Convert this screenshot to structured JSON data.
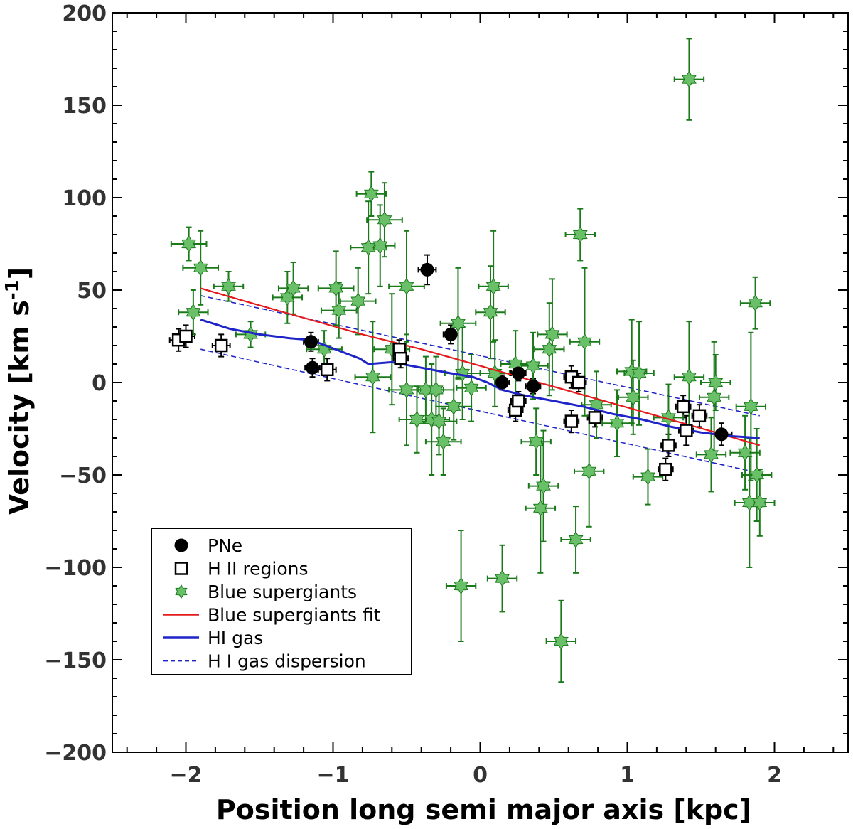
{
  "chart_data": {
    "type": "scatter",
    "title": "",
    "xlabel": "Position long semi major axis [kpc]",
    "ylabel": "Velocity [km s",
    "ylabel_sup": "-1",
    "ylabel_end": "]",
    "xlim": [
      -2.5,
      2.5
    ],
    "ylim": [
      -200,
      200
    ],
    "xticks": [
      -2,
      -1,
      0,
      1,
      2
    ],
    "xtick_labels": [
      "−2",
      "−1",
      "0",
      "1",
      "2"
    ],
    "yticks": [
      -200,
      -150,
      -100,
      -50,
      0,
      50,
      100,
      150,
      200
    ],
    "ytick_labels": [
      "−200",
      "−150",
      "−100",
      "−50",
      "0",
      "50",
      "100",
      "150",
      "200"
    ],
    "colors": {
      "pne": "#000000",
      "hii": "#000000",
      "bsg_fill": "#6abf69",
      "bsg_err": "#1a7a1a",
      "fit": "#e41a1c",
      "hi": "#1f24c8",
      "hi_disp": "#1f24c8"
    },
    "legend": {
      "position": "lower-left",
      "entries": [
        "PNe",
        "H II regions",
        "Blue supergiants",
        "Blue supergiants fit",
        "HI gas",
        "H I gas dispersion"
      ]
    },
    "series": [
      {
        "name": "PNe",
        "marker": "circle",
        "points": [
          {
            "x": -1.15,
            "y": 22,
            "xerr": 0.05,
            "yerr": 5
          },
          {
            "x": -1.14,
            "y": 8,
            "xerr": 0.05,
            "yerr": 5
          },
          {
            "x": -0.36,
            "y": 61,
            "xerr": 0.06,
            "yerr": 8
          },
          {
            "x": -0.2,
            "y": 26,
            "xerr": 0.05,
            "yerr": 5
          },
          {
            "x": 0.15,
            "y": 0,
            "xerr": 0.05,
            "yerr": 4
          },
          {
            "x": 0.26,
            "y": 5,
            "xerr": 0.05,
            "yerr": 4
          },
          {
            "x": 0.36,
            "y": -2,
            "xerr": 0.05,
            "yerr": 4
          },
          {
            "x": 1.64,
            "y": -28,
            "xerr": 0.07,
            "yerr": 6
          }
        ]
      },
      {
        "name": "H II regions",
        "marker": "square",
        "points": [
          {
            "x": -2.05,
            "y": 23,
            "xerr": 0.06,
            "yerr": 6
          },
          {
            "x": -2.0,
            "y": 25,
            "xerr": 0.06,
            "yerr": 6
          },
          {
            "x": -1.76,
            "y": 20,
            "xerr": 0.06,
            "yerr": 6
          },
          {
            "x": -1.04,
            "y": 7,
            "xerr": 0.06,
            "yerr": 6
          },
          {
            "x": -0.55,
            "y": 18,
            "xerr": 0.05,
            "yerr": 5
          },
          {
            "x": -0.54,
            "y": 13,
            "xerr": 0.05,
            "yerr": 5
          },
          {
            "x": 0.24,
            "y": -15,
            "xerr": 0.05,
            "yerr": 6
          },
          {
            "x": 0.26,
            "y": -10,
            "xerr": 0.05,
            "yerr": 5
          },
          {
            "x": 0.62,
            "y": 3,
            "xerr": 0.05,
            "yerr": 6
          },
          {
            "x": 0.67,
            "y": 0,
            "xerr": 0.05,
            "yerr": 5
          },
          {
            "x": 0.62,
            "y": -21,
            "xerr": 0.05,
            "yerr": 6
          },
          {
            "x": 0.78,
            "y": -19,
            "xerr": 0.05,
            "yerr": 5
          },
          {
            "x": 1.26,
            "y": -47,
            "xerr": 0.05,
            "yerr": 6
          },
          {
            "x": 1.28,
            "y": -34,
            "xerr": 0.05,
            "yerr": 6
          },
          {
            "x": 1.38,
            "y": -13,
            "xerr": 0.05,
            "yerr": 6
          },
          {
            "x": 1.4,
            "y": -26,
            "xerr": 0.05,
            "yerr": 8
          },
          {
            "x": 1.49,
            "y": -18,
            "xerr": 0.05,
            "yerr": 6
          }
        ]
      },
      {
        "name": "Blue supergiants",
        "marker": "star",
        "points": [
          {
            "x": -1.98,
            "y": 75,
            "xerr": 0.12,
            "yerr": 9
          },
          {
            "x": -1.9,
            "y": 62,
            "xerr": 0.12,
            "yerr": 20
          },
          {
            "x": -1.95,
            "y": 38,
            "xerr": 0.1,
            "yerr": 12
          },
          {
            "x": -1.71,
            "y": 52,
            "xerr": 0.1,
            "yerr": 8
          },
          {
            "x": -1.56,
            "y": 26,
            "xerr": 0.1,
            "yerr": 7
          },
          {
            "x": -1.31,
            "y": 46,
            "xerr": 0.1,
            "yerr": 14
          },
          {
            "x": -1.27,
            "y": 51,
            "xerr": 0.1,
            "yerr": 14
          },
          {
            "x": -0.98,
            "y": 51,
            "xerr": 0.12,
            "yerr": 20
          },
          {
            "x": -0.96,
            "y": 39,
            "xerr": 0.12,
            "yerr": 15
          },
          {
            "x": -1.06,
            "y": 18,
            "xerr": 0.12,
            "yerr": 10
          },
          {
            "x": -0.83,
            "y": 44,
            "xerr": 0.12,
            "yerr": 18
          },
          {
            "x": -0.74,
            "y": 102,
            "xerr": 0.1,
            "yerr": 12
          },
          {
            "x": -0.76,
            "y": 73,
            "xerr": 0.12,
            "yerr": 25
          },
          {
            "x": -0.68,
            "y": 74,
            "xerr": 0.1,
            "yerr": 22
          },
          {
            "x": -0.65,
            "y": 88,
            "xerr": 0.12,
            "yerr": 20
          },
          {
            "x": -0.73,
            "y": 3,
            "xerr": 0.12,
            "yerr": 30
          },
          {
            "x": -0.6,
            "y": 18,
            "xerr": 0.12,
            "yerr": 30
          },
          {
            "x": -0.5,
            "y": 52,
            "xerr": 0.12,
            "yerr": 30
          },
          {
            "x": -0.5,
            "y": -4,
            "xerr": 0.12,
            "yerr": 30
          },
          {
            "x": -0.43,
            "y": -20,
            "xerr": 0.12,
            "yerr": 18
          },
          {
            "x": -0.37,
            "y": -4,
            "xerr": 0.12,
            "yerr": 18
          },
          {
            "x": -0.33,
            "y": -20,
            "xerr": 0.12,
            "yerr": 30
          },
          {
            "x": -0.3,
            "y": -4,
            "xerr": 0.12,
            "yerr": 18
          },
          {
            "x": -0.28,
            "y": -21,
            "xerr": 0.12,
            "yerr": 18
          },
          {
            "x": -0.25,
            "y": -32,
            "xerr": 0.12,
            "yerr": 18
          },
          {
            "x": -0.18,
            "y": -13,
            "xerr": 0.12,
            "yerr": 18
          },
          {
            "x": -0.15,
            "y": 32,
            "xerr": 0.12,
            "yerr": 30
          },
          {
            "x": -0.12,
            "y": 5,
            "xerr": 0.12,
            "yerr": 25
          },
          {
            "x": -0.13,
            "y": -110,
            "xerr": 0.1,
            "yerr": 30
          },
          {
            "x": -0.06,
            "y": -3,
            "xerr": 0.1,
            "yerr": 18
          },
          {
            "x": 0.07,
            "y": 38,
            "xerr": 0.1,
            "yerr": 25
          },
          {
            "x": 0.09,
            "y": 52,
            "xerr": 0.1,
            "yerr": 30
          },
          {
            "x": 0.1,
            "y": 5,
            "xerr": 0.1,
            "yerr": 18
          },
          {
            "x": 0.15,
            "y": -106,
            "xerr": 0.1,
            "yerr": 18
          },
          {
            "x": 0.24,
            "y": 10,
            "xerr": 0.1,
            "yerr": 18
          },
          {
            "x": 0.38,
            "y": -32,
            "xerr": 0.1,
            "yerr": 18
          },
          {
            "x": 0.36,
            "y": 9,
            "xerr": 0.1,
            "yerr": 18
          },
          {
            "x": 0.41,
            "y": -68,
            "xerr": 0.1,
            "yerr": 35
          },
          {
            "x": 0.47,
            "y": 18,
            "xerr": 0.1,
            "yerr": 25
          },
          {
            "x": 0.43,
            "y": -56,
            "xerr": 0.1,
            "yerr": 30
          },
          {
            "x": 0.49,
            "y": 26,
            "xerr": 0.1,
            "yerr": 30
          },
          {
            "x": 0.55,
            "y": -140,
            "xerr": 0.1,
            "yerr": 22
          },
          {
            "x": 0.65,
            "y": -85,
            "xerr": 0.1,
            "yerr": 18
          },
          {
            "x": 0.68,
            "y": 80,
            "xerr": 0.1,
            "yerr": 14
          },
          {
            "x": 0.71,
            "y": 22,
            "xerr": 0.1,
            "yerr": 40
          },
          {
            "x": 0.74,
            "y": -48,
            "xerr": 0.1,
            "yerr": 30
          },
          {
            "x": 0.79,
            "y": -12,
            "xerr": 0.1,
            "yerr": 18
          },
          {
            "x": 0.93,
            "y": -22,
            "xerr": 0.1,
            "yerr": 18
          },
          {
            "x": 1.03,
            "y": 6,
            "xerr": 0.1,
            "yerr": 28
          },
          {
            "x": 1.04,
            "y": -8,
            "xerr": 0.1,
            "yerr": 20
          },
          {
            "x": 1.08,
            "y": 5,
            "xerr": 0.1,
            "yerr": 28
          },
          {
            "x": 1.14,
            "y": -51,
            "xerr": 0.1,
            "yerr": 15
          },
          {
            "x": 1.28,
            "y": -19,
            "xerr": 0.1,
            "yerr": 18
          },
          {
            "x": 1.42,
            "y": 164,
            "xerr": 0.1,
            "yerr": 22
          },
          {
            "x": 1.42,
            "y": 3,
            "xerr": 0.1,
            "yerr": 30
          },
          {
            "x": 1.57,
            "y": -39,
            "xerr": 0.1,
            "yerr": 20
          },
          {
            "x": 1.6,
            "y": 0,
            "xerr": 0.1,
            "yerr": 15
          },
          {
            "x": 1.59,
            "y": -8,
            "xerr": 0.1,
            "yerr": 30
          },
          {
            "x": 1.8,
            "y": -38,
            "xerr": 0.1,
            "yerr": 20
          },
          {
            "x": 1.84,
            "y": -13,
            "xerr": 0.1,
            "yerr": 40
          },
          {
            "x": 1.83,
            "y": -65,
            "xerr": 0.1,
            "yerr": 35
          },
          {
            "x": 1.87,
            "y": 43,
            "xerr": 0.1,
            "yerr": 14
          },
          {
            "x": 1.88,
            "y": -50,
            "xerr": 0.1,
            "yerr": 25
          },
          {
            "x": 1.9,
            "y": -65,
            "xerr": 0.1,
            "yerr": 18
          }
        ]
      },
      {
        "name": "Blue supergiants fit",
        "style": "line",
        "x": [
          -1.9,
          -1.6,
          -1.2,
          -0.8,
          -0.4,
          0.0,
          0.4,
          0.8,
          1.2,
          1.6,
          1.9
        ],
        "y": [
          51,
          44,
          35,
          26,
          18,
          9,
          0,
          -9,
          -18,
          -27,
          -34
        ]
      },
      {
        "name": "HI gas",
        "style": "line",
        "x": [
          -1.9,
          -1.7,
          -1.5,
          -1.3,
          -1.15,
          -1.05,
          -0.92,
          -0.82,
          -0.76,
          -0.6,
          -0.4,
          -0.2,
          -0.05,
          0.05,
          0.15,
          0.3,
          0.5,
          0.7,
          0.9,
          1.1,
          1.3,
          1.5,
          1.7,
          1.9
        ],
        "y": [
          34,
          29,
          26,
          24,
          23,
          20,
          16,
          13,
          10,
          11,
          8,
          5,
          3,
          0,
          -4,
          -7,
          -10,
          -13,
          -17,
          -20,
          -24,
          -27,
          -29,
          -30
        ]
      },
      {
        "name": "H I gas dispersion",
        "style": "dashed",
        "lines": [
          {
            "x": [
              -1.9,
              1.9
            ],
            "y": [
              47,
              -18
            ]
          },
          {
            "x": [
              -1.9,
              1.9
            ],
            "y": [
              18,
              -49
            ]
          }
        ]
      }
    ]
  }
}
